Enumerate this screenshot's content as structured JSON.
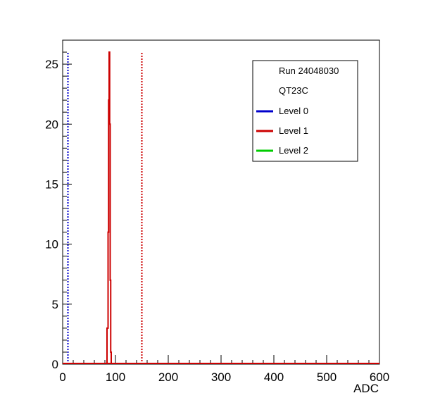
{
  "chart_data": {
    "type": "line",
    "title": "",
    "xlabel": "ADC",
    "ylabel": "",
    "xlim": [
      0,
      600
    ],
    "ylim": [
      0,
      27
    ],
    "x_ticks": [
      0,
      100,
      200,
      300,
      400,
      500,
      600
    ],
    "y_ticks": [
      0,
      5,
      10,
      15,
      20,
      25
    ],
    "grid": false,
    "legend_position": "top-right",
    "legend": {
      "header_lines": [
        "Run 24048030",
        "QT23C"
      ],
      "entries": [
        {
          "label": "Level 0",
          "color": "#0000cc"
        },
        {
          "label": "Level 1",
          "color": "#cc0000"
        },
        {
          "label": "Level 2",
          "color": "#00cc00"
        }
      ]
    },
    "series": [
      {
        "name": "Level 1",
        "color": "#cc0000",
        "bin_width": 1,
        "bins": [
          {
            "x": 84,
            "y": 3
          },
          {
            "x": 85,
            "y": 3
          },
          {
            "x": 86,
            "y": 11
          },
          {
            "x": 87,
            "y": 22
          },
          {
            "x": 88,
            "y": 26
          },
          {
            "x": 89,
            "y": 20
          },
          {
            "x": 90,
            "y": 7
          },
          {
            "x": 91,
            "y": 1
          }
        ]
      },
      {
        "name": "Level 0",
        "color": "#0000cc",
        "bins": []
      },
      {
        "name": "Level 2",
        "color": "#00cc00",
        "bins": []
      }
    ],
    "threshold_lines": [
      {
        "x": 10,
        "y_top": 26,
        "color": "#0000cc",
        "style": "dotted"
      },
      {
        "x": 150,
        "y_top": 26,
        "color": "#cc0000",
        "style": "dotted"
      }
    ]
  }
}
